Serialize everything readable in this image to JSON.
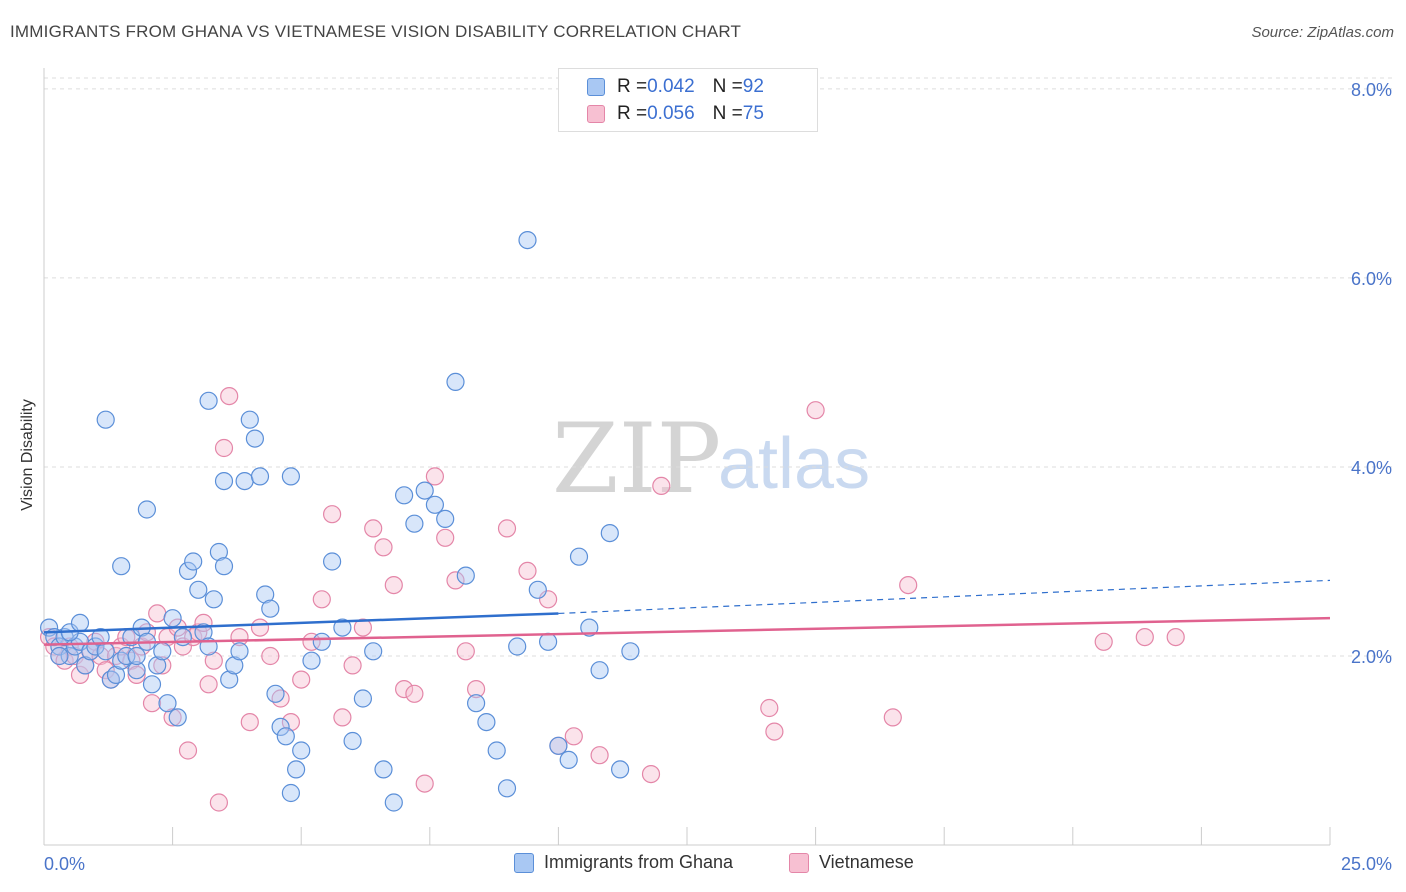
{
  "title": "IMMIGRANTS FROM GHANA VS VIETNAMESE VISION DISABILITY CORRELATION CHART",
  "source": "Source: ZipAtlas.com",
  "watermark": {
    "zip": "ZIP",
    "atlas": "atlas"
  },
  "legend_top": [
    {
      "r_label": "R = ",
      "r_value": "0.042",
      "n_label": "N = ",
      "n_value": "92"
    },
    {
      "r_label": "R = ",
      "r_value": "0.056",
      "n_label": "N = ",
      "n_value": "75"
    }
  ],
  "colors": {
    "blue_fill": "#a9c8f3",
    "blue_stroke": "#5b8fd8",
    "blue_line": "#2f6fcd",
    "pink_fill": "#f7c0d2",
    "pink_stroke": "#e486a8",
    "pink_line": "#e0628f",
    "grid": "#dddddd",
    "tick_text": "#4a74c9"
  },
  "chart_data": {
    "type": "scatter",
    "title": "IMMIGRANTS FROM GHANA VS VIETNAMESE VISION DISABILITY CORRELATION CHART",
    "xlabel": "",
    "ylabel": "Vision Disability",
    "xlim": [
      0,
      25
    ],
    "ylim": [
      0,
      8.2
    ],
    "x_tick_labels": [
      "0.0%",
      "25.0%"
    ],
    "y_ticks": [
      2,
      4,
      6,
      8
    ],
    "y_tick_labels": [
      "2.0%",
      "4.0%",
      "6.0%",
      "8.0%"
    ],
    "grid": true,
    "legend_position": "bottom",
    "series": [
      {
        "name": "Immigrants from Ghana",
        "r": 0.042,
        "n": 92,
        "trend": {
          "solid": [
            [
              0,
              2.25
            ],
            [
              10,
              2.45
            ]
          ],
          "dashed": [
            [
              10,
              2.45
            ],
            [
              25,
              2.8
            ]
          ]
        },
        "points": [
          [
            0.1,
            2.3
          ],
          [
            0.2,
            2.2
          ],
          [
            0.3,
            2.1
          ],
          [
            0.4,
            2.2
          ],
          [
            0.5,
            2.0
          ],
          [
            0.6,
            2.1
          ],
          [
            0.7,
            2.15
          ],
          [
            0.8,
            1.9
          ],
          [
            0.9,
            2.05
          ],
          [
            1.0,
            2.1
          ],
          [
            1.1,
            2.2
          ],
          [
            1.2,
            2.05
          ],
          [
            1.3,
            1.75
          ],
          [
            1.4,
            1.8
          ],
          [
            1.5,
            1.95
          ],
          [
            1.6,
            2.0
          ],
          [
            1.7,
            2.2
          ],
          [
            1.8,
            1.85
          ],
          [
            1.9,
            2.3
          ],
          [
            2.0,
            2.15
          ],
          [
            2.1,
            1.7
          ],
          [
            2.2,
            1.9
          ],
          [
            2.3,
            2.05
          ],
          [
            2.4,
            1.5
          ],
          [
            2.5,
            2.4
          ],
          [
            2.6,
            1.35
          ],
          [
            2.7,
            2.2
          ],
          [
            2.8,
            2.9
          ],
          [
            2.9,
            3.0
          ],
          [
            3.0,
            2.7
          ],
          [
            3.1,
            2.25
          ],
          [
            3.2,
            2.1
          ],
          [
            3.3,
            2.6
          ],
          [
            3.4,
            3.1
          ],
          [
            3.5,
            2.95
          ],
          [
            3.6,
            1.75
          ],
          [
            3.7,
            1.9
          ],
          [
            3.8,
            2.05
          ],
          [
            3.9,
            3.85
          ],
          [
            4.0,
            4.5
          ],
          [
            4.1,
            4.3
          ],
          [
            4.2,
            3.9
          ],
          [
            4.3,
            2.65
          ],
          [
            4.4,
            2.5
          ],
          [
            4.5,
            1.6
          ],
          [
            4.6,
            1.25
          ],
          [
            4.7,
            1.15
          ],
          [
            4.8,
            0.55
          ],
          [
            4.9,
            0.8
          ],
          [
            5.0,
            1.0
          ],
          [
            5.2,
            1.95
          ],
          [
            5.4,
            2.15
          ],
          [
            5.6,
            3.0
          ],
          [
            5.8,
            2.3
          ],
          [
            6.0,
            1.1
          ],
          [
            6.2,
            1.55
          ],
          [
            6.4,
            2.05
          ],
          [
            6.6,
            0.8
          ],
          [
            6.8,
            0.45
          ],
          [
            7.0,
            3.7
          ],
          [
            7.2,
            3.4
          ],
          [
            7.4,
            3.75
          ],
          [
            7.6,
            3.6
          ],
          [
            7.8,
            3.45
          ],
          [
            8.0,
            4.9
          ],
          [
            8.2,
            2.85
          ],
          [
            8.4,
            1.5
          ],
          [
            8.6,
            1.3
          ],
          [
            8.8,
            1.0
          ],
          [
            9.0,
            0.6
          ],
          [
            9.2,
            2.1
          ],
          [
            9.4,
            6.4
          ],
          [
            9.6,
            2.7
          ],
          [
            9.8,
            2.15
          ],
          [
            10.0,
            1.05
          ],
          [
            10.2,
            0.9
          ],
          [
            10.4,
            3.05
          ],
          [
            10.6,
            2.3
          ],
          [
            10.8,
            1.85
          ],
          [
            11.0,
            3.3
          ],
          [
            11.2,
            0.8
          ],
          [
            11.4,
            2.05
          ],
          [
            1.2,
            4.5
          ],
          [
            1.5,
            2.95
          ],
          [
            0.5,
            2.25
          ],
          [
            2.0,
            3.55
          ],
          [
            3.2,
            4.7
          ],
          [
            3.5,
            3.85
          ],
          [
            4.8,
            3.9
          ],
          [
            0.3,
            2.0
          ],
          [
            0.7,
            2.35
          ],
          [
            1.8,
            2.0
          ]
        ]
      },
      {
        "name": "Vietnamese",
        "r": 0.056,
        "n": 75,
        "trend": {
          "solid": [
            [
              0,
              2.12
            ],
            [
              25,
              2.4
            ]
          ]
        },
        "points": [
          [
            0.1,
            2.2
          ],
          [
            0.2,
            2.1
          ],
          [
            0.3,
            2.0
          ],
          [
            0.4,
            1.95
          ],
          [
            0.5,
            2.1
          ],
          [
            0.6,
            2.0
          ],
          [
            0.7,
            1.8
          ],
          [
            0.8,
            1.9
          ],
          [
            0.9,
            2.05
          ],
          [
            1.0,
            2.15
          ],
          [
            1.1,
            2.0
          ],
          [
            1.2,
            1.85
          ],
          [
            1.3,
            1.75
          ],
          [
            1.4,
            2.0
          ],
          [
            1.5,
            2.1
          ],
          [
            1.6,
            2.2
          ],
          [
            1.7,
            1.95
          ],
          [
            1.8,
            1.8
          ],
          [
            1.9,
            2.1
          ],
          [
            2.0,
            2.25
          ],
          [
            2.1,
            1.5
          ],
          [
            2.2,
            2.45
          ],
          [
            2.3,
            1.9
          ],
          [
            2.4,
            2.2
          ],
          [
            2.5,
            1.35
          ],
          [
            2.6,
            2.3
          ],
          [
            2.7,
            2.1
          ],
          [
            2.8,
            1.0
          ],
          [
            2.9,
            2.2
          ],
          [
            3.0,
            2.25
          ],
          [
            3.1,
            2.35
          ],
          [
            3.2,
            1.7
          ],
          [
            3.3,
            1.95
          ],
          [
            3.4,
            0.45
          ],
          [
            3.5,
            4.2
          ],
          [
            3.6,
            4.75
          ],
          [
            3.8,
            2.2
          ],
          [
            4.0,
            1.3
          ],
          [
            4.2,
            2.3
          ],
          [
            4.4,
            2.0
          ],
          [
            4.6,
            1.55
          ],
          [
            4.8,
            1.3
          ],
          [
            5.0,
            1.75
          ],
          [
            5.2,
            2.15
          ],
          [
            5.4,
            2.6
          ],
          [
            5.6,
            3.5
          ],
          [
            5.8,
            1.35
          ],
          [
            6.0,
            1.9
          ],
          [
            6.2,
            2.3
          ],
          [
            6.4,
            3.35
          ],
          [
            6.6,
            3.15
          ],
          [
            6.8,
            2.75
          ],
          [
            7.0,
            1.65
          ],
          [
            7.2,
            1.6
          ],
          [
            7.4,
            0.65
          ],
          [
            7.6,
            3.9
          ],
          [
            7.8,
            3.25
          ],
          [
            8.0,
            2.8
          ],
          [
            8.2,
            2.05
          ],
          [
            8.4,
            1.65
          ],
          [
            9.0,
            3.35
          ],
          [
            9.4,
            2.9
          ],
          [
            9.8,
            2.6
          ],
          [
            10.0,
            1.05
          ],
          [
            10.3,
            1.15
          ],
          [
            10.8,
            0.95
          ],
          [
            12.0,
            3.8
          ],
          [
            11.8,
            0.75
          ],
          [
            14.1,
            1.45
          ],
          [
            14.2,
            1.2
          ],
          [
            15.0,
            4.6
          ],
          [
            16.5,
            1.35
          ],
          [
            16.8,
            2.75
          ],
          [
            20.6,
            2.15
          ],
          [
            21.4,
            2.2
          ],
          [
            22.0,
            2.2
          ]
        ]
      }
    ]
  },
  "legend_bottom": [
    {
      "label": "Immigrants from Ghana"
    },
    {
      "label": "Vietnamese"
    }
  ]
}
